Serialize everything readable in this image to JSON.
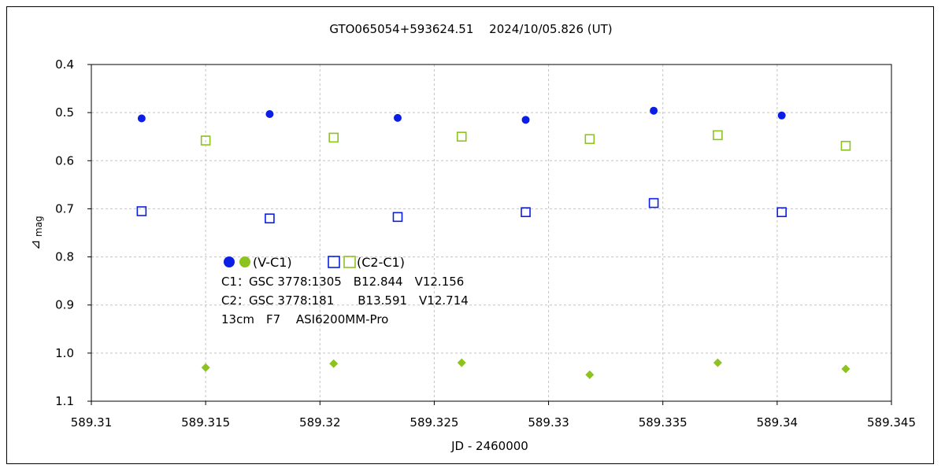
{
  "chart_data": {
    "type": "scatter",
    "title": "GTO065054+593624.51　 2024/10/05.826 (UT)",
    "xlabel": "JD - 2460000",
    "ylabel_main": "⊿",
    "ylabel_sub": "mag",
    "xlim": [
      589.31,
      589.345
    ],
    "ylim": [
      0.4,
      1.1
    ],
    "y_inverted": true,
    "grid": true,
    "x_ticks": [
      589.31,
      589.315,
      589.32,
      589.325,
      589.33,
      589.335,
      589.34,
      589.345
    ],
    "x_tick_labels": [
      "589.31",
      "589.315",
      "589.32",
      "589.325",
      "589.33",
      "589.335",
      "589.34",
      "589.345"
    ],
    "y_ticks": [
      0.4,
      0.5,
      0.6,
      0.7,
      0.8,
      0.9,
      1.0,
      1.1
    ],
    "y_tick_labels": [
      "0.4",
      "0.5",
      "0.6",
      "0.7",
      "0.8",
      "0.9",
      "1.0",
      "1.1"
    ],
    "series": [
      {
        "key": "vc1_blue",
        "marker": "filled-circle",
        "color": "#0a1ee6",
        "x": [
          589.3122,
          589.3178,
          589.3234,
          589.329,
          589.3346,
          589.3402
        ],
        "y": [
          0.512,
          0.503,
          0.511,
          0.515,
          0.496,
          0.506
        ]
      },
      {
        "key": "c2c1_blue",
        "marker": "open-square",
        "color": "#0a1ee6",
        "x": [
          589.3122,
          589.3178,
          589.3234,
          589.329,
          589.3346,
          589.3402
        ],
        "y": [
          0.705,
          0.72,
          0.717,
          0.707,
          0.688,
          0.707
        ]
      },
      {
        "key": "c2c1_green",
        "marker": "open-square",
        "color": "#8cc31e",
        "x": [
          589.315,
          589.3206,
          589.3262,
          589.3318,
          589.3374,
          589.343
        ],
        "y": [
          0.558,
          0.552,
          0.55,
          0.555,
          0.547,
          0.569
        ]
      },
      {
        "key": "vc1_green",
        "marker": "filled-diamond",
        "color": "#8cc31e",
        "x": [
          589.315,
          589.3206,
          589.3262,
          589.3318,
          589.3374,
          589.343
        ],
        "y": [
          1.03,
          1.022,
          1.02,
          1.045,
          1.02,
          1.033
        ]
      }
    ],
    "legend": {
      "placement": "center-left",
      "vc1_label": "(V-C1)",
      "c2c1_label": "(C2-C1)",
      "lines": [
        "C1：GSC 3778:1305　B12.844　V12.156",
        "C2：GSC 3778:181　　B13.591　V12.714",
        "13cm　F7　 ASI6200MM-Pro"
      ]
    }
  }
}
